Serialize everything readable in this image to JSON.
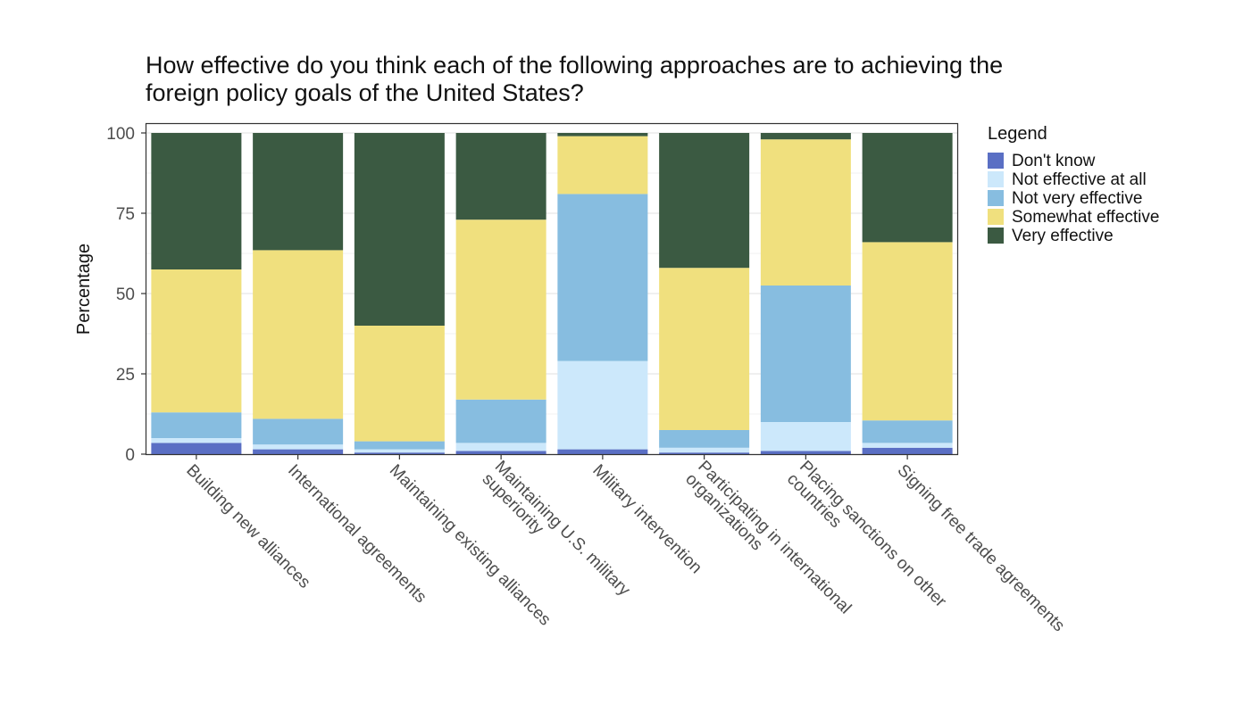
{
  "chart_data": {
    "type": "bar",
    "stacked": true,
    "title": "How effective do you think each of the following approaches are to achieving the foreign policy goals of the United States?",
    "title_lines": [
      "How effective do you think each of the following approaches are to achieving the",
      "foreign policy goals of the United States?"
    ],
    "xlabel": "",
    "ylabel": "Percentage",
    "ylim": [
      0,
      100
    ],
    "yticks": [
      0,
      25,
      50,
      75,
      100
    ],
    "grid": true,
    "legend": {
      "title": "Legend",
      "position": "right"
    },
    "categories": [
      "Building new alliances",
      "International agreements",
      "Maintaining existing alliances",
      "Maintaining U.S. military superiority",
      "Military intervention",
      "Participating in international organizations",
      "Placing sanctions on other countries",
      "Signing free trade agreements"
    ],
    "category_label_lines": [
      [
        "Building new alliances"
      ],
      [
        "International agreements"
      ],
      [
        "Maintaining existing alliances"
      ],
      [
        "Maintaining U.S. military",
        "superiority"
      ],
      [
        "Military intervention"
      ],
      [
        "Participating in international",
        "organizations"
      ],
      [
        "Placing sanctions on other",
        "countries"
      ],
      [
        "Signing free trade agreements"
      ]
    ],
    "series": [
      {
        "name": "Don't know",
        "color": "#5a6fc4",
        "values": [
          3.5,
          1.5,
          0.5,
          1.0,
          1.5,
          0.5,
          1.0,
          2.0
        ]
      },
      {
        "name": "Not effective at all",
        "color": "#cce8fb",
        "values": [
          1.5,
          1.5,
          1.0,
          2.5,
          27.5,
          1.5,
          9.0,
          1.5
        ]
      },
      {
        "name": "Not very effective",
        "color": "#87bde0",
        "values": [
          8.0,
          8.0,
          2.5,
          13.5,
          52.0,
          5.5,
          42.5,
          7.0
        ]
      },
      {
        "name": "Somewhat effective",
        "color": "#f0e07e",
        "values": [
          44.5,
          52.5,
          36.0,
          56.0,
          18.0,
          50.5,
          45.5,
          55.5
        ]
      },
      {
        "name": "Very effective",
        "color": "#3b5a42",
        "values": [
          42.5,
          36.5,
          60.0,
          27.0,
          1.0,
          42.0,
          2.0,
          34.0
        ]
      }
    ]
  }
}
